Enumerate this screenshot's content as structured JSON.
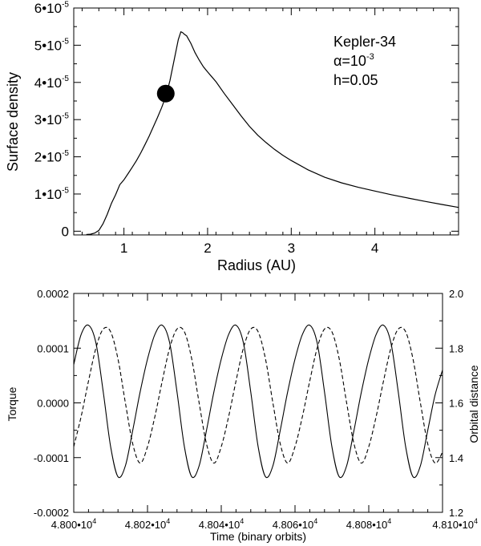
{
  "chart_data": [
    {
      "type": "line",
      "xlabel": "Radius (AU)",
      "ylabel": "Surface density",
      "xlim": [
        0.4,
        5.0
      ],
      "ylim": [
        -1e-06,
        6e-05
      ],
      "x_ticks": [
        {
          "value": 1,
          "label": "1"
        },
        {
          "value": 2,
          "label": "2"
        },
        {
          "value": 3,
          "label": "3"
        },
        {
          "value": 4,
          "label": "4"
        }
      ],
      "y_ticks": [
        {
          "value": 0,
          "label": "0"
        },
        {
          "value": 1e-05,
          "mant": "1",
          "exp": "-5"
        },
        {
          "value": 2e-05,
          "mant": "2",
          "exp": "-5"
        },
        {
          "value": 3e-05,
          "mant": "3",
          "exp": "-5"
        },
        {
          "value": 4e-05,
          "mant": "4",
          "exp": "-5"
        },
        {
          "value": 5e-05,
          "mant": "5",
          "exp": "-5"
        },
        {
          "value": 6e-05,
          "mant": "6",
          "exp": "-5"
        }
      ],
      "series": [
        {
          "style": "solid",
          "x": [
            0.55,
            0.6,
            0.65,
            0.7,
            0.75,
            0.8,
            0.85,
            0.9,
            0.95,
            1.0,
            1.05,
            1.1,
            1.15,
            1.2,
            1.25,
            1.3,
            1.35,
            1.4,
            1.45,
            1.5,
            1.55,
            1.6,
            1.65,
            1.68,
            1.7,
            1.72,
            1.75,
            1.8,
            1.85,
            1.9,
            1.95,
            2.0,
            2.05,
            2.1,
            2.2,
            2.3,
            2.4,
            2.5,
            2.6,
            2.7,
            2.8,
            2.9,
            3.0,
            3.2,
            3.4,
            3.6,
            3.8,
            4.0,
            4.2,
            4.4,
            4.6,
            4.8,
            5.0
          ],
          "y": [
            -9e-07,
            -8e-07,
            -5e-07,
            2e-07,
            2e-06,
            4.5e-06,
            7.5e-06,
            9.8e-06,
            1.25e-05,
            1.38e-05,
            1.55e-05,
            1.72e-05,
            1.9e-05,
            2.1e-05,
            2.32e-05,
            2.55e-05,
            2.8e-05,
            3.05e-05,
            3.32e-05,
            3.62e-05,
            4.05e-05,
            4.6e-05,
            5.15e-05,
            5.36e-05,
            5.34e-05,
            5.3e-05,
            5.25e-05,
            5.05e-05,
            4.8e-05,
            4.6e-05,
            4.42e-05,
            4.28e-05,
            4.15e-05,
            4.02e-05,
            3.7e-05,
            3.4e-05,
            3.1e-05,
            2.82e-05,
            2.58e-05,
            2.38e-05,
            2.2e-05,
            2.04e-05,
            1.9e-05,
            1.65e-05,
            1.45e-05,
            1.3e-05,
            1.18e-05,
            1.08e-05,
            9.8e-06,
            8.9e-06,
            8e-06,
            7.2e-06,
            6.4e-06
          ]
        }
      ],
      "marker": {
        "x": 1.5,
        "y": 3.7e-05
      },
      "annotation": [
        "Kepler-34",
        "α=10",
        "-3",
        "h=0.05"
      ]
    },
    {
      "type": "line",
      "xlabel": "Time (binary orbits)",
      "ylabel": "Torque",
      "y2label": "Orbital distance",
      "xlim": [
        48000,
        48100
      ],
      "ylim": [
        -0.0002,
        0.0002
      ],
      "y2lim": [
        1.2,
        2.0
      ],
      "x_ticks": [
        {
          "value": 48000,
          "mant": "4.800",
          "exp": "4"
        },
        {
          "value": 48020,
          "mant": "4.802",
          "exp": "4"
        },
        {
          "value": 48040,
          "mant": "4.804",
          "exp": "4"
        },
        {
          "value": 48060,
          "mant": "4.806",
          "exp": "4"
        },
        {
          "value": 48080,
          "mant": "4.808",
          "exp": "4"
        },
        {
          "value": 48100,
          "mant": "4.810",
          "exp": "4"
        }
      ],
      "y_ticks": [
        {
          "value": -0.0002,
          "label": "-0.0002"
        },
        {
          "value": -0.0001,
          "label": "-0.0001"
        },
        {
          "value": 0,
          "label": "0.0000"
        },
        {
          "value": 0.0001,
          "label": "0.0001"
        },
        {
          "value": 0.0002,
          "label": "0.0002"
        }
      ],
      "y2_ticks": [
        {
          "value": 1.2,
          "label": "1.2"
        },
        {
          "value": 1.4,
          "label": "1.4"
        },
        {
          "value": 1.6,
          "label": "1.6"
        },
        {
          "value": 1.8,
          "label": "1.8"
        },
        {
          "value": 2.0,
          "label": "2.0"
        }
      ],
      "series": [
        {
          "style": "solid",
          "axis": "left",
          "x": [
            48000,
            48002,
            48004,
            48006,
            48008,
            48010,
            48012,
            48014,
            48016,
            48018,
            48020,
            48022,
            48024,
            48026,
            48028,
            48030,
            48032,
            48034,
            48036,
            48038,
            48040,
            48042,
            48044,
            48046,
            48048,
            48050,
            48052,
            48054,
            48056,
            48058,
            48060,
            48062,
            48064,
            48066,
            48068,
            48070,
            48072,
            48074,
            48076,
            48078,
            48080,
            48082,
            48084,
            48086,
            48088,
            48090,
            48092,
            48094,
            48096,
            48098,
            48100
          ],
          "y": [
            7e-05,
            0.000125,
            0.000142,
            0.00011,
            2e-05,
            -8e-05,
            -0.000135,
            -0.000115,
            -5e-05,
            2e-05,
            8e-05,
            0.000125,
            0.000142,
            0.00011,
            2e-05,
            -8e-05,
            -0.000135,
            -0.000115,
            -5e-05,
            2e-05,
            8e-05,
            0.000125,
            0.000142,
            0.00011,
            2e-05,
            -8e-05,
            -0.000135,
            -0.000115,
            -5e-05,
            2e-05,
            8e-05,
            0.000125,
            0.000142,
            0.00011,
            2e-05,
            -8e-05,
            -0.000135,
            -0.000115,
            -5e-05,
            2e-05,
            8e-05,
            0.000125,
            0.000142,
            0.00011,
            2e-05,
            -8e-05,
            -0.000135,
            -0.000115,
            -5e-05,
            1.5e-05,
            6e-05
          ]
        },
        {
          "style": "dashed",
          "axis": "right",
          "x": [
            48000,
            48002,
            48004,
            48006,
            48008,
            48010,
            48012,
            48014,
            48016,
            48018,
            48020,
            48022,
            48024,
            48026,
            48028,
            48030,
            48032,
            48034,
            48036,
            48038,
            48040,
            48042,
            48044,
            48046,
            48048,
            48050,
            48052,
            48054,
            48056,
            48058,
            48060,
            48062,
            48064,
            48066,
            48068,
            48070,
            48072,
            48074,
            48076,
            48078,
            48080,
            48082,
            48084,
            48086,
            48088,
            48090,
            48092,
            48094,
            48096,
            48098,
            48100
          ],
          "y": [
            1.44,
            1.55,
            1.68,
            1.8,
            1.87,
            1.86,
            1.76,
            1.6,
            1.45,
            1.38,
            1.44,
            1.55,
            1.68,
            1.8,
            1.87,
            1.86,
            1.76,
            1.6,
            1.45,
            1.38,
            1.44,
            1.55,
            1.68,
            1.8,
            1.87,
            1.86,
            1.76,
            1.6,
            1.45,
            1.38,
            1.44,
            1.55,
            1.68,
            1.8,
            1.87,
            1.86,
            1.76,
            1.6,
            1.45,
            1.38,
            1.44,
            1.55,
            1.68,
            1.8,
            1.87,
            1.86,
            1.76,
            1.6,
            1.45,
            1.38,
            1.42
          ]
        }
      ]
    }
  ]
}
